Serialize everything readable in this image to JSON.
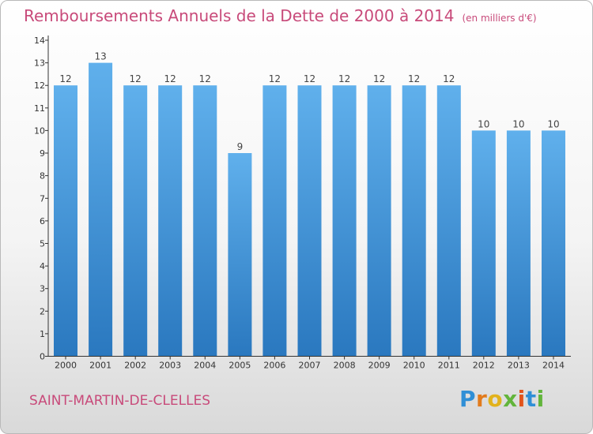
{
  "title": "Remboursements Annuels de la Dette de 2000 à 2014",
  "subtitle": "(en milliers d'€)",
  "commune": "SAINT-MARTIN-DE-CLELLES",
  "logo": {
    "text": "Proxiti"
  },
  "colors": {
    "title": "#c84a7a",
    "bar_top": "#60b0ec",
    "bar_bottom": "#2a78bf",
    "axis": "#333333"
  },
  "chart_data": {
    "type": "bar",
    "categories": [
      "2000",
      "2001",
      "2002",
      "2003",
      "2004",
      "2005",
      "2006",
      "2007",
      "2008",
      "2009",
      "2010",
      "2011",
      "2012",
      "2013",
      "2014"
    ],
    "values": [
      12,
      13,
      12,
      12,
      12,
      9,
      12,
      12,
      12,
      12,
      12,
      12,
      10,
      10,
      10
    ],
    "data_labels": [
      "12",
      "13",
      "12",
      "12",
      "12",
      "9",
      "12",
      "12",
      "12",
      "12",
      "12",
      "12",
      "10",
      "10",
      "10"
    ],
    "y_ticks": [
      "0",
      "1",
      "2",
      "3",
      "4",
      "5",
      "6",
      "7",
      "8",
      "9",
      "10",
      "11",
      "12",
      "13",
      "14"
    ],
    "ylim": [
      0,
      14
    ],
    "grid": false
  }
}
